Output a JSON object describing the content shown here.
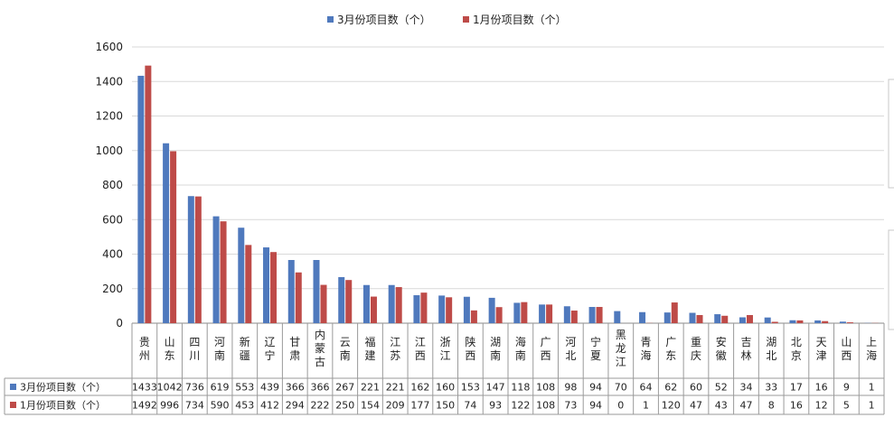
{
  "chart_data": {
    "type": "bar",
    "title": "",
    "xlabel": "",
    "ylabel": "",
    "ylim": [
      0,
      1600
    ],
    "yticks": [
      "0",
      "200",
      "400",
      "600",
      "800",
      "1000",
      "1200",
      "1400",
      "1600"
    ],
    "grid": true,
    "legend_position": "top",
    "colors": [
      "#4f79bd",
      "#be4b48"
    ],
    "categories": [
      "贵州",
      "山东",
      "四川",
      "河南",
      "新疆",
      "辽宁",
      "甘肃",
      "内蒙古",
      "云南",
      "福建",
      "江苏",
      "江西",
      "浙江",
      "陕西",
      "湖南",
      "海南",
      "广西",
      "河北",
      "宁夏",
      "黑龙江",
      "青海",
      "广东",
      "重庆",
      "安徽",
      "吉林",
      "湖北",
      "北京",
      "天津",
      "山西",
      "上海"
    ],
    "series": [
      {
        "name": "3月份项目数（个）",
        "values": [
          1433,
          1042,
          736,
          619,
          553,
          439,
          366,
          366,
          267,
          221,
          221,
          162,
          160,
          153,
          147,
          118,
          108,
          98,
          94,
          70,
          64,
          62,
          60,
          52,
          34,
          33,
          17,
          16,
          9,
          1
        ]
      },
      {
        "name": "1月份项目数（个）",
        "values": [
          1492,
          996,
          734,
          590,
          453,
          412,
          294,
          222,
          250,
          154,
          209,
          177,
          150,
          74,
          93,
          122,
          108,
          73,
          94,
          0,
          1,
          120,
          47,
          43,
          47,
          8,
          16,
          12,
          5,
          1
        ]
      }
    ]
  }
}
